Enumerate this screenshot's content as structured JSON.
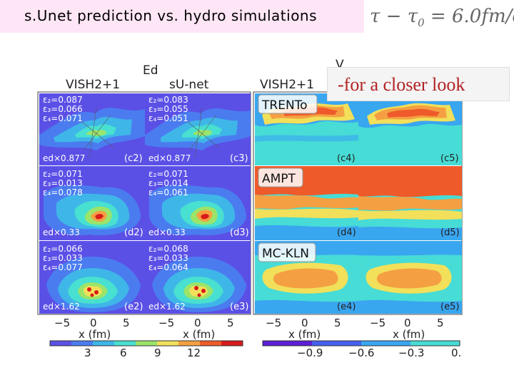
{
  "slide": {
    "title": "s.Unet prediction vs. hydro simulations",
    "formula": {
      "tau": "τ",
      "minus": "−",
      "tau0": "τ",
      "sub0": "0",
      "eq_value": "= 6.0",
      "units": "fm/c"
    },
    "callout": "-for a closer look"
  },
  "figure": {
    "left_group_label": "Ed",
    "right_group_label_partial": "V",
    "col_headers": [
      "VISH2+1",
      "sU-net",
      "VISH2+1"
    ],
    "model_labels": [
      "TRENTo",
      "AMPT",
      "MC-KLN"
    ],
    "rows": [
      {
        "vish_eps": [
          "ε₂=0.087",
          "ε₃=0.066",
          "ε₄=0.071"
        ],
        "sunet_eps": [
          "ε₂=0.083",
          "ε₃=0.055",
          "ε₄=0.051"
        ],
        "vish_scale": "ed×0.877",
        "sunet_scale": "ed×0.877",
        "panels": [
          "(c2)",
          "(c3)",
          "(c4)",
          "(c5)"
        ]
      },
      {
        "vish_eps": [
          "ε₂=0.071",
          "ε₃=0.013",
          "ε₄=0.078"
        ],
        "sunet_eps": [
          "ε₂=0.071",
          "ε₃=0.014",
          "ε₄=0.061"
        ],
        "vish_scale": "ed×0.33",
        "sunet_scale": "ed×0.33",
        "panels": [
          "(d2)",
          "(d3)",
          "(d4)",
          "(d5)"
        ]
      },
      {
        "vish_eps": [
          "ε₂=0.066",
          "ε₃=0.033",
          "ε₄=0.077"
        ],
        "sunet_eps": [
          "ε₂=0.068",
          "ε₃=0.033",
          "ε₄=0.064"
        ],
        "vish_scale": "ed×1.62",
        "sunet_scale": "ed×1.62",
        "panels": [
          "(e2)",
          "(e3)",
          "(e4)",
          "(e5)"
        ]
      }
    ],
    "x_ticks": [
      "−5",
      "0",
      "5"
    ],
    "x_label": "x (fm)",
    "colorbar_left_ticks": [
      "3",
      "6",
      "9",
      "12"
    ],
    "colorbar_right_ticks": [
      "−0.9",
      "−0.6",
      "−0.3",
      "0."
    ],
    "colorbar_left_colors": [
      "#5b50e6",
      "#4a7cf0",
      "#3fb6e8",
      "#48e0d0",
      "#9be46a",
      "#f2e05a",
      "#f4a042",
      "#ef5a2a",
      "#d81a1a"
    ],
    "colorbar_right_colors": [
      "#5a1fd6",
      "#4460f0",
      "#39a6f0",
      "#47dcd6"
    ]
  }
}
